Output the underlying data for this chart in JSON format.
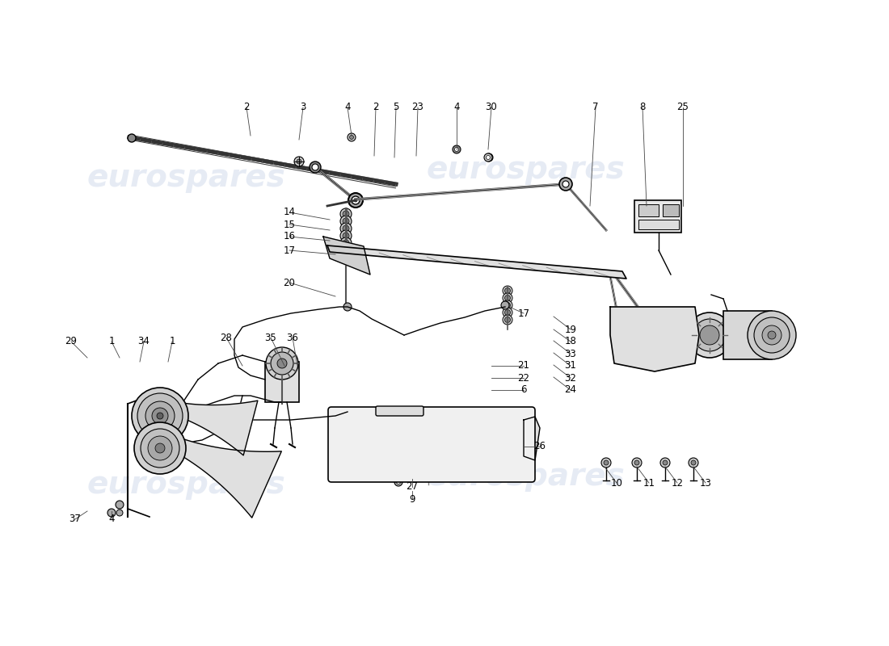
{
  "bg_color": "#ffffff",
  "line_color": "#000000",
  "watermark_color": "#c8d4e8",
  "watermark_text": "eurospares",
  "parts": [
    [
      "2",
      305,
      133,
      310,
      168
    ],
    [
      "3",
      375,
      133,
      370,
      173
    ],
    [
      "4",
      430,
      133,
      435,
      168
    ],
    [
      "2",
      465,
      133,
      463,
      193
    ],
    [
      "5",
      490,
      133,
      488,
      195
    ],
    [
      "23",
      517,
      133,
      515,
      193
    ],
    [
      "4",
      565,
      133,
      565,
      185
    ],
    [
      "30",
      608,
      133,
      604,
      185
    ],
    [
      "7",
      737,
      133,
      730,
      255
    ],
    [
      "8",
      795,
      133,
      800,
      255
    ],
    [
      "25",
      845,
      133,
      845,
      255
    ],
    [
      "14",
      358,
      263,
      408,
      272
    ],
    [
      "15",
      358,
      278,
      408,
      285
    ],
    [
      "16",
      358,
      293,
      408,
      298
    ],
    [
      "17",
      358,
      310,
      415,
      315
    ],
    [
      "20",
      358,
      350,
      415,
      367
    ],
    [
      "17",
      648,
      388,
      630,
      380
    ],
    [
      "19",
      706,
      408,
      685,
      392
    ],
    [
      "18",
      706,
      423,
      685,
      408
    ],
    [
      "33",
      706,
      438,
      685,
      422
    ],
    [
      "31",
      706,
      453,
      685,
      437
    ],
    [
      "32",
      706,
      468,
      685,
      452
    ],
    [
      "24",
      706,
      483,
      685,
      467
    ],
    [
      "21",
      648,
      453,
      608,
      453
    ],
    [
      "22",
      648,
      468,
      608,
      468
    ],
    [
      "6",
      648,
      483,
      608,
      483
    ],
    [
      "26",
      668,
      553,
      648,
      553
    ],
    [
      "27",
      510,
      603,
      510,
      593
    ],
    [
      "9",
      510,
      618,
      510,
      608
    ],
    [
      "10",
      763,
      598,
      748,
      578
    ],
    [
      "11",
      803,
      598,
      788,
      578
    ],
    [
      "12",
      838,
      598,
      823,
      578
    ],
    [
      "13",
      873,
      598,
      858,
      578
    ],
    [
      "29",
      88,
      423,
      108,
      443
    ],
    [
      "1",
      138,
      423,
      148,
      443
    ],
    [
      "34",
      178,
      423,
      173,
      448
    ],
    [
      "1",
      213,
      423,
      208,
      448
    ],
    [
      "28",
      280,
      418,
      300,
      453
    ],
    [
      "35",
      335,
      418,
      352,
      453
    ],
    [
      "36",
      362,
      418,
      368,
      453
    ],
    [
      "37",
      93,
      643,
      108,
      633
    ],
    [
      "4",
      138,
      643,
      138,
      633
    ]
  ]
}
